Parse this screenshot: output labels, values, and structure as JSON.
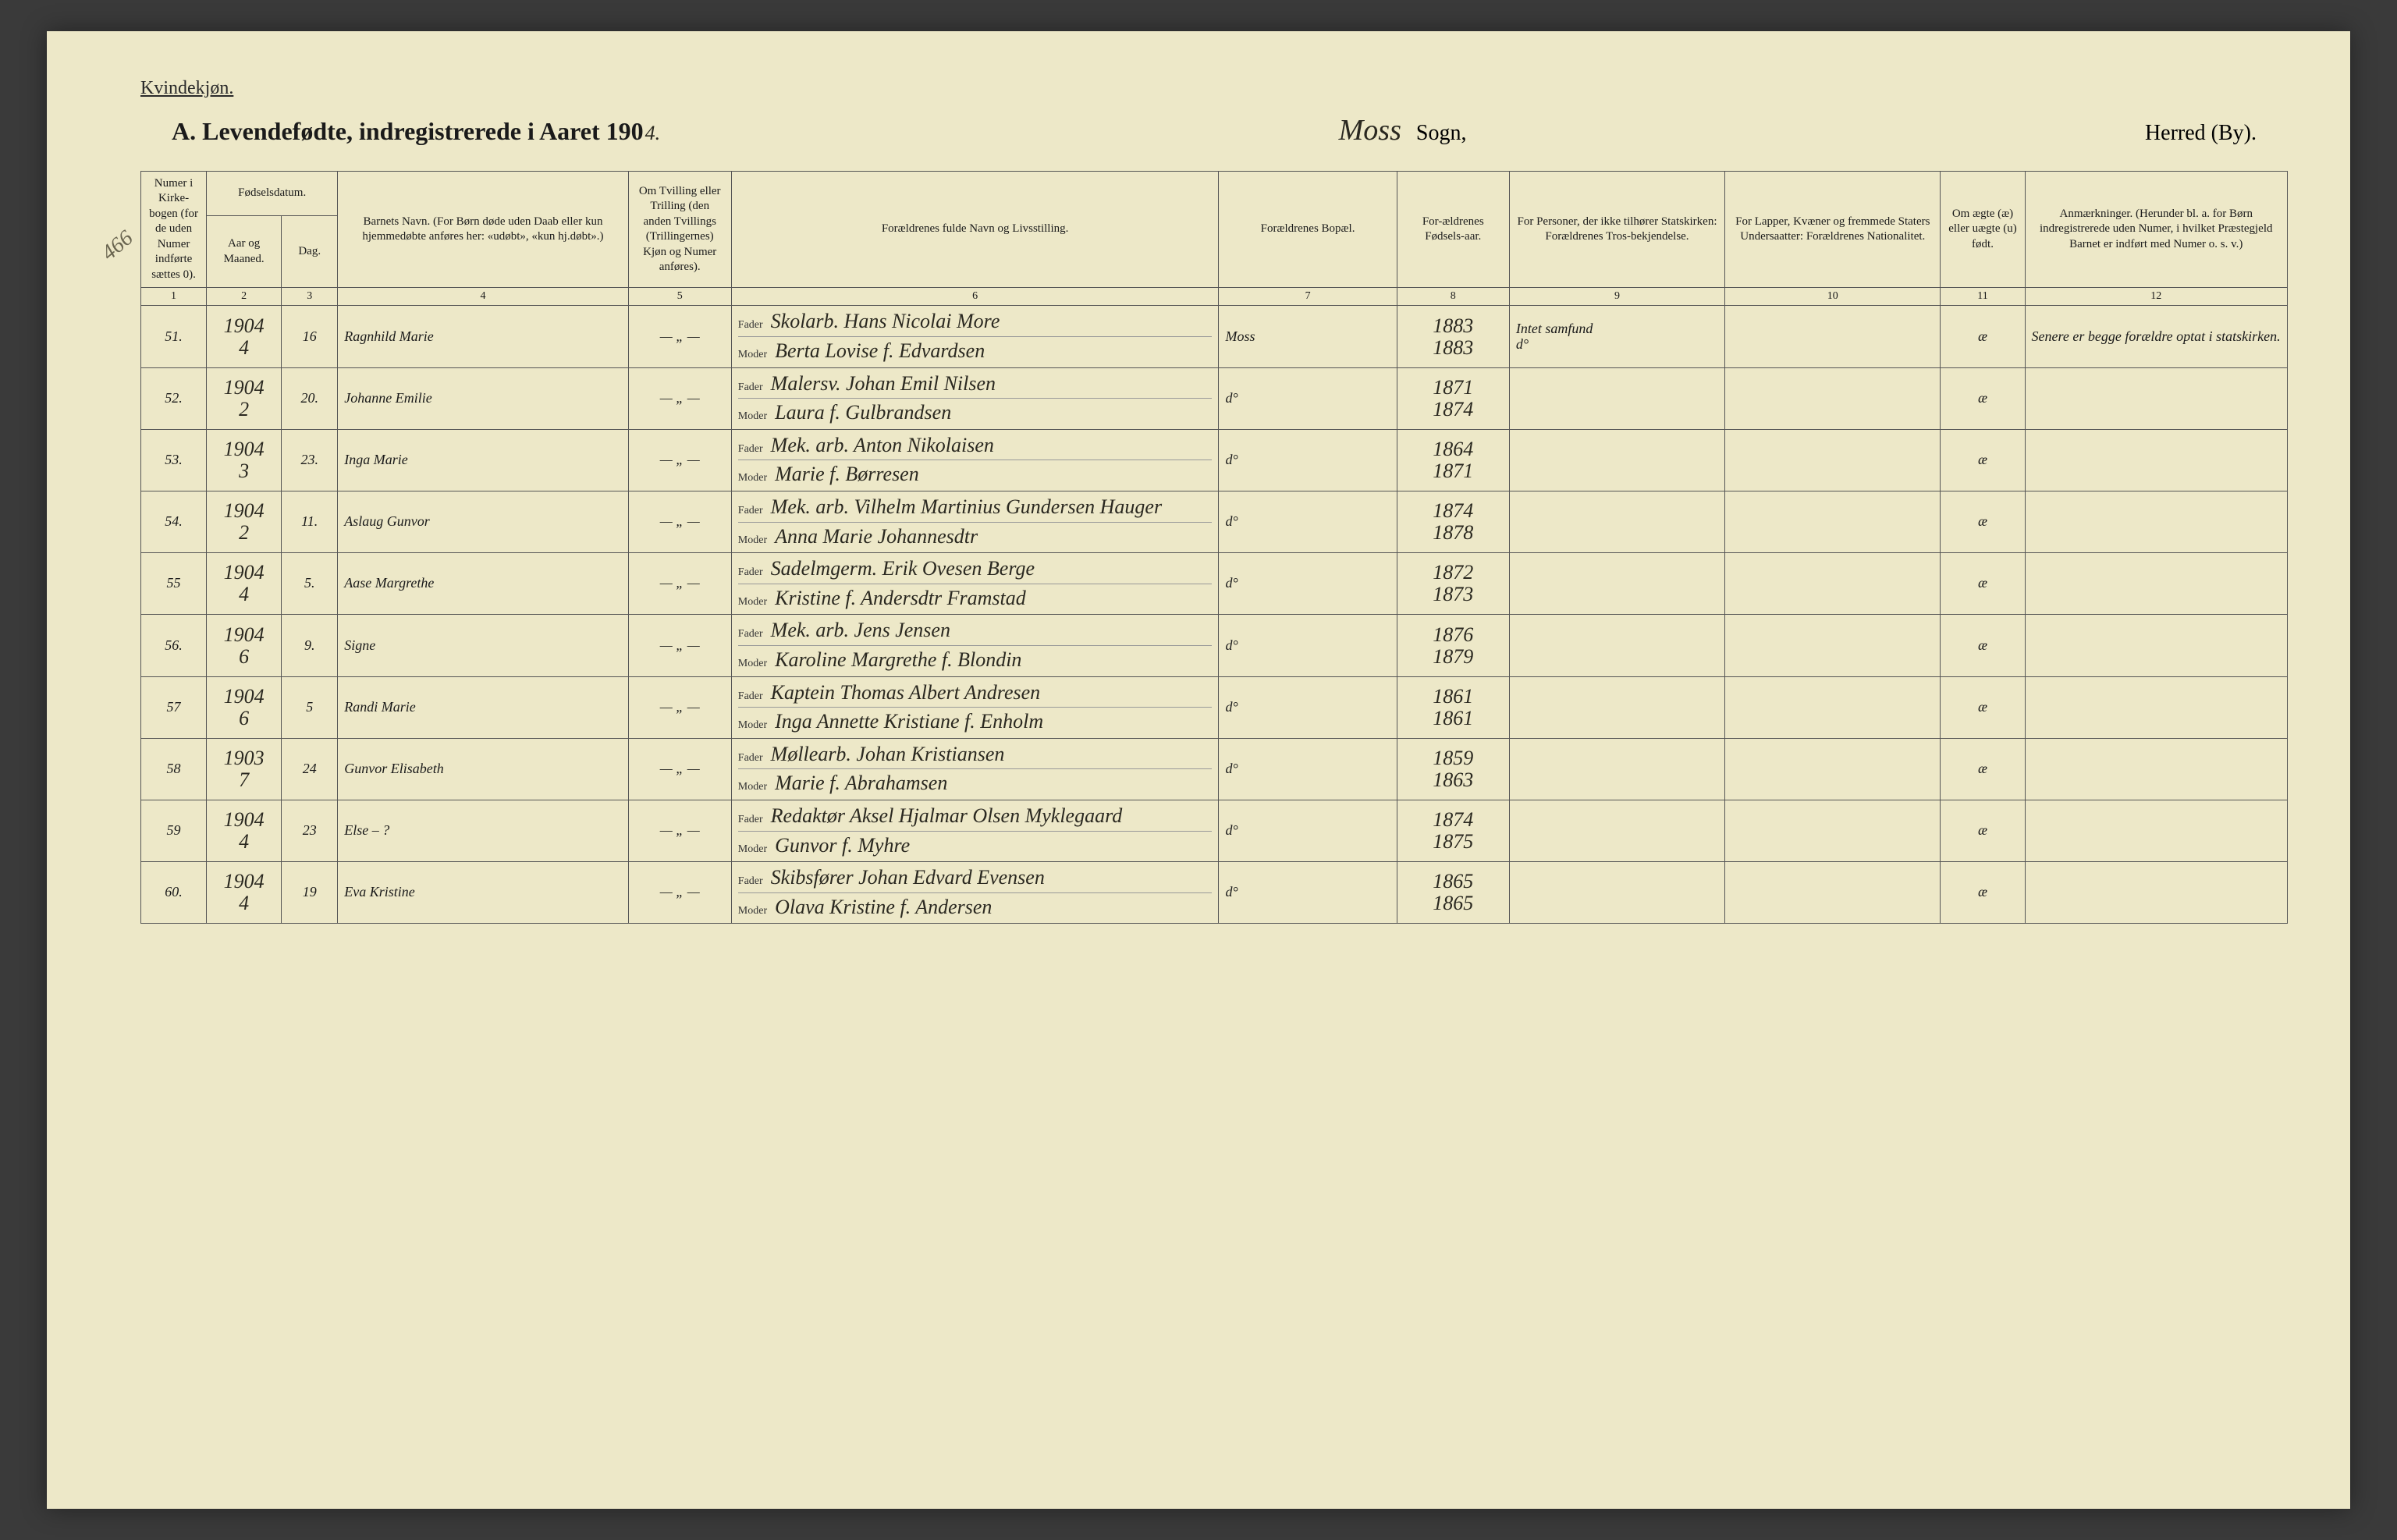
{
  "header": {
    "gender_label": "Kvindekjøn.",
    "title_prefix": "A.  Levendefødte, indregistrerede i Aaret 190",
    "title_year_hw": "4.",
    "sogn_hw": "Moss",
    "sogn_label": "Sogn,",
    "herred_label": "Herred (By).",
    "margin_note": "466"
  },
  "columns": {
    "c1": "Numer i Kirke-bogen (for de uden Numer indførte sættes 0).",
    "c2_group": "Fødselsdatum.",
    "c2a": "Aar og Maaned.",
    "c2b": "Dag.",
    "c4": "Barnets Navn.\n(For Børn døde uden Daab eller kun hjemmedøbte anføres her: «udøbt», «kun hj.døbt».)",
    "c5": "Om Tvilling eller Trilling (den anden Tvillings (Trillingernes) Kjøn og Numer anføres).",
    "c6": "Forældrenes fulde Navn og Livsstilling.",
    "c7": "Forældrenes Bopæl.",
    "c8": "For-ældrenes Fødsels-aar.",
    "c9": "For Personer, der ikke tilhører Statskirken: Forældrenes Tros-bekjendelse.",
    "c10": "For Lapper, Kvæner og fremmede Staters Undersaatter: Forældrenes Nationalitet.",
    "c11": "Om ægte (æ) eller uægte (u) født.",
    "c12": "Anmærkninger.\n(Herunder bl. a. for Børn indregistrerede uden Numer, i hvilket Præstegjeld Barnet er indført med Numer o. s. v.)",
    "nums": [
      "1",
      "2",
      "3",
      "4",
      "5",
      "6",
      "7",
      "8",
      "9",
      "10",
      "11",
      "12"
    ],
    "fader": "Fader",
    "moder": "Moder"
  },
  "rows": [
    {
      "num": "51.",
      "year": "1904",
      "month": "4",
      "day": "16",
      "child": "Ragnhild Marie",
      "twin": "— „ —",
      "father": "Skolarb. Hans Nicolai More",
      "mother": "Berta Lovise f. Edvardsen",
      "residence": "Moss",
      "parent_years": [
        "1883",
        "1883"
      ],
      "faith": "Intet samfund\n d°",
      "nationality": "",
      "legit": "æ",
      "remarks": "Senere er begge forældre optat i statskirken."
    },
    {
      "num": "52.",
      "year": "1904",
      "month": "2",
      "day": "20.",
      "child": "Johanne Emilie",
      "twin": "— „ —",
      "father": "Malersv. Johan Emil Nilsen",
      "mother": "Laura f. Gulbrandsen",
      "residence": "d°",
      "parent_years": [
        "1871",
        "1874"
      ],
      "faith": "",
      "nationality": "",
      "legit": "æ",
      "remarks": ""
    },
    {
      "num": "53.",
      "year": "1904",
      "month": "3",
      "day": "23.",
      "child": "Inga Marie",
      "twin": "— „ —",
      "father": "Mek. arb. Anton Nikolaisen",
      "mother": "Marie f. Børresen",
      "residence": "d°",
      "parent_years": [
        "1864",
        "1871"
      ],
      "faith": "",
      "nationality": "",
      "legit": "æ",
      "remarks": ""
    },
    {
      "num": "54.",
      "year": "1904",
      "month": "2",
      "day": "11.",
      "child": "Aslaug Gunvor",
      "twin": "— „ —",
      "father": "Mek. arb. Vilhelm Martinius Gundersen Hauger",
      "mother": "Anna Marie Johannesdtr",
      "residence": "d°",
      "parent_years": [
        "1874",
        "1878"
      ],
      "faith": "",
      "nationality": "",
      "legit": "æ",
      "remarks": ""
    },
    {
      "num": "55",
      "year": "1904",
      "month": "4",
      "day": "5.",
      "child": "Aase Margrethe",
      "twin": "— „ —",
      "father": "Sadelmgerm. Erik Ovesen Berge",
      "mother": "Kristine f. Andersdtr Framstad",
      "residence": "d°",
      "parent_years": [
        "1872",
        "1873"
      ],
      "faith": "",
      "nationality": "",
      "legit": "æ",
      "remarks": ""
    },
    {
      "num": "56.",
      "year": "1904",
      "month": "6",
      "day": "9.",
      "child": "Signe",
      "twin": "— „ —",
      "father": "Mek. arb. Jens Jensen",
      "mother": "Karoline Margrethe f. Blondin",
      "residence": "d°",
      "parent_years": [
        "1876",
        "1879"
      ],
      "faith": "",
      "nationality": "",
      "legit": "æ",
      "remarks": ""
    },
    {
      "num": "57",
      "year": "1904",
      "month": "6",
      "day": "5",
      "child": "Randi Marie",
      "twin": "— „ —",
      "father": "Kaptein Thomas Albert Andresen",
      "mother": "Inga Annette Kristiane f. Enholm",
      "residence": "d°",
      "parent_years": [
        "1861",
        "1861"
      ],
      "faith": "",
      "nationality": "",
      "legit": "æ",
      "remarks": ""
    },
    {
      "num": "58",
      "year": "1903",
      "month": "7",
      "day": "24",
      "child": "Gunvor Elisabeth",
      "twin": "— „ —",
      "father": "Møllearb. Johan Kristiansen",
      "mother": "Marie f. Abrahamsen",
      "residence": "d°",
      "parent_years": [
        "1859",
        "1863"
      ],
      "faith": "",
      "nationality": "",
      "legit": "æ",
      "remarks": ""
    },
    {
      "num": "59",
      "year": "1904",
      "month": "4",
      "day": "23",
      "child": "Else – ?",
      "twin": "— „ —",
      "father": "Redaktør Aksel Hjalmar Olsen Myklegaard",
      "mother": "Gunvor f. Myhre",
      "residence": "d°",
      "parent_years": [
        "1874",
        "1875"
      ],
      "faith": "",
      "nationality": "",
      "legit": "æ",
      "remarks": ""
    },
    {
      "num": "60.",
      "year": "1904",
      "month": "4",
      "day": "19",
      "child": "Eva Kristine",
      "twin": "— „ —",
      "father": "Skibsfører Johan Edvard Evensen",
      "mother": "Olava Kristine f. Andersen",
      "residence": "d°",
      "parent_years": [
        "1865",
        "1865"
      ],
      "faith": "",
      "nationality": "",
      "legit": "æ",
      "remarks": ""
    }
  ]
}
